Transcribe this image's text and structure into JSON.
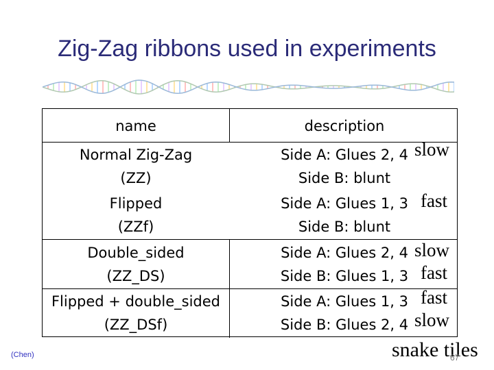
{
  "slide": {
    "title": "Zig-Zag ribbons used in experiments",
    "credit": "(Chen)",
    "snake_tiles": "snake tiles",
    "page_number": "67"
  },
  "table": {
    "headers": {
      "name": "name",
      "description": "description"
    },
    "rows": [
      {
        "name": [
          "Normal Zig-Zag",
          "(ZZ)"
        ],
        "description": [
          "Side A: Glues 2, 4",
          "Side B: blunt"
        ],
        "speeds": [
          "slow"
        ]
      },
      {
        "name": [
          "Flipped",
          "(ZZf)"
        ],
        "description": [
          "Side A: Glues 1, 3",
          "Side B: blunt"
        ],
        "speeds": [
          "fast"
        ]
      },
      {
        "name": [
          "Double_sided",
          "(ZZ_DS)"
        ],
        "description": [
          "Side A: Glues 2, 4",
          "Side B: Glues 1, 3"
        ],
        "speeds": [
          "slow",
          "fast"
        ]
      },
      {
        "name": [
          "Flipped + double_sided",
          "(ZZ_DSf)"
        ],
        "description": [
          "Side A: Glues 1, 3",
          "Side B: Glues 2, 4"
        ],
        "speeds": [
          "fast",
          "slow"
        ]
      }
    ]
  },
  "colors": {
    "title": "#2b2b78",
    "credit": "#3030c0"
  },
  "decoration": {
    "dna_strip": "dna-helix-banner"
  }
}
